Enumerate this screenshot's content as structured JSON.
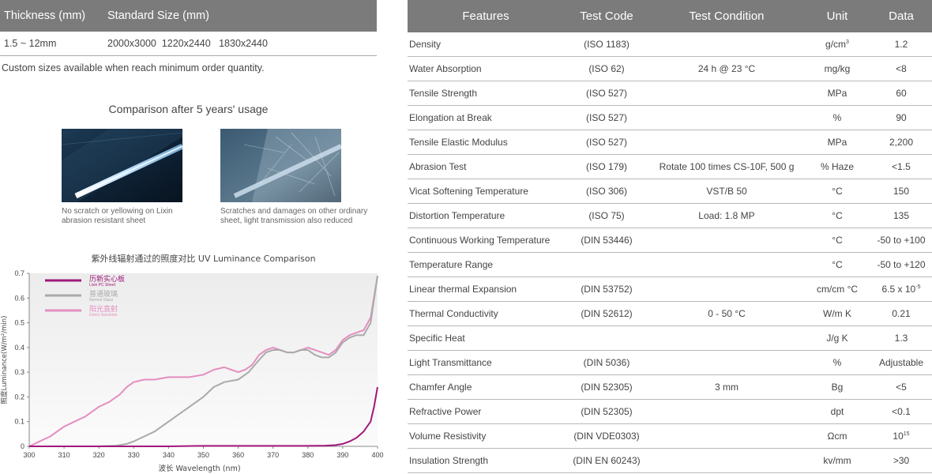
{
  "size_table": {
    "headers": [
      "Thickness (mm)",
      "Standard Size (mm)"
    ],
    "row": {
      "thickness": "1.5 ~ 12mm",
      "sizes": "2000x3000  1220x2440   1830x2440"
    }
  },
  "custom_note": "Custom sizes available when reach minimum order quantity.",
  "comparison": {
    "title": "Comparison after 5 years' usage",
    "left_caption": [
      "No scratch or yellowing on Lixin",
      "abrasion resistant sheet"
    ],
    "right_caption": [
      "Scratches and damages on other ordinary",
      "sheet, light transmission also reduced"
    ]
  },
  "chart_data": {
    "type": "line",
    "title": "紫外线辐射通过的照度对比 UV Luminance Comparison",
    "xlabel": "波长 Wavelength (nm)",
    "ylabel": "照度Luminance(W/m²/min)",
    "xlim": [
      300,
      400
    ],
    "ylim": [
      0,
      0.7
    ],
    "xticks": [
      300,
      310,
      320,
      330,
      340,
      350,
      360,
      370,
      380,
      390,
      400
    ],
    "yticks": [
      0,
      0.1,
      0.2,
      0.3,
      0.4,
      0.5,
      0.6,
      0.7
    ],
    "grid": false,
    "legend_position": "top-left",
    "series": [
      {
        "name": "历新实心板",
        "name_en": "Lixin PC Sheet",
        "color": "#a0197c",
        "x": [
          300,
          310,
          320,
          330,
          340,
          350,
          360,
          370,
          380,
          385,
          388,
          390,
          392,
          394,
          396,
          398,
          399,
          400
        ],
        "y": [
          0,
          0,
          0,
          0,
          0,
          0.002,
          0.002,
          0.002,
          0.002,
          0.003,
          0.005,
          0.01,
          0.02,
          0.035,
          0.06,
          0.1,
          0.16,
          0.24
        ]
      },
      {
        "name": "普通玻璃",
        "name_en": "Normal Glass",
        "color": "#aaaaaa",
        "x": [
          300,
          310,
          320,
          325,
          328,
          330,
          333,
          336,
          340,
          343,
          346,
          350,
          353,
          356,
          360,
          363,
          366,
          368,
          370,
          372,
          374,
          376,
          378,
          380,
          382,
          384,
          386,
          388,
          390,
          392,
          394,
          396,
          398,
          400
        ],
        "y": [
          0,
          0,
          0,
          0.003,
          0.01,
          0.02,
          0.04,
          0.06,
          0.1,
          0.13,
          0.16,
          0.2,
          0.24,
          0.26,
          0.27,
          0.3,
          0.35,
          0.38,
          0.39,
          0.39,
          0.38,
          0.38,
          0.39,
          0.39,
          0.37,
          0.36,
          0.36,
          0.38,
          0.42,
          0.44,
          0.45,
          0.45,
          0.5,
          0.69
        ]
      },
      {
        "name": "阳光直射",
        "name_en": "Direct Sunshine",
        "color": "#e48fc0",
        "x": [
          300,
          303,
          306,
          310,
          313,
          316,
          320,
          323,
          326,
          328,
          330,
          333,
          336,
          340,
          343,
          346,
          350,
          353,
          356,
          358,
          360,
          362,
          364,
          366,
          368,
          370,
          372,
          374,
          376,
          378,
          380,
          382,
          384,
          386,
          388,
          390,
          392,
          394,
          396,
          398,
          400
        ],
        "y": [
          0,
          0.02,
          0.04,
          0.08,
          0.1,
          0.12,
          0.16,
          0.18,
          0.21,
          0.24,
          0.26,
          0.27,
          0.27,
          0.28,
          0.28,
          0.28,
          0.29,
          0.31,
          0.32,
          0.31,
          0.3,
          0.31,
          0.33,
          0.37,
          0.39,
          0.4,
          0.39,
          0.38,
          0.38,
          0.39,
          0.4,
          0.39,
          0.38,
          0.37,
          0.39,
          0.43,
          0.45,
          0.46,
          0.47,
          0.52,
          0.69
        ]
      }
    ]
  },
  "props_table": {
    "headers": [
      "Features",
      "Test Code",
      "Test Condition",
      "Unit",
      "Data"
    ],
    "rows": [
      {
        "feature": "Density",
        "code": "(ISO 1183)",
        "condition": "",
        "unit": "g/cm",
        "unit_sup": "3",
        "data": "1.2",
        "data_sup": ""
      },
      {
        "feature": "Water Absorption",
        "code": "(ISO 62)",
        "condition": "24 h @ 23 °C",
        "unit": "mg/kg",
        "unit_sup": "",
        "data": "<8",
        "data_sup": ""
      },
      {
        "feature": "Tensile Strength",
        "code": "(ISO 527)",
        "condition": "",
        "unit": "MPa",
        "unit_sup": "",
        "data": "60",
        "data_sup": ""
      },
      {
        "feature": "Elongation at Break",
        "code": "(ISO 527)",
        "condition": "",
        "unit": "%",
        "unit_sup": "",
        "data": "90",
        "data_sup": ""
      },
      {
        "feature": "Tensile Elastic Modulus",
        "code": "(ISO 527)",
        "condition": "",
        "unit": "MPa",
        "unit_sup": "",
        "data": "2,200",
        "data_sup": ""
      },
      {
        "feature": "Abrasion Test",
        "code": "(ISO 179)",
        "condition": "Rotate 100 times CS-10F, 500 g",
        "unit": "% Haze",
        "unit_sup": "",
        "data": "<1.5",
        "data_sup": ""
      },
      {
        "feature": "Vicat Softening Temperature",
        "code": "(ISO 306)",
        "condition": "VST/B 50",
        "unit": "°C",
        "unit_sup": "",
        "data": "150",
        "data_sup": ""
      },
      {
        "feature": "Distortion Temperature",
        "code": "(ISO 75)",
        "condition": "Load: 1.8 MP",
        "unit": "°C",
        "unit_sup": "",
        "data": "135",
        "data_sup": ""
      },
      {
        "feature": "Continuous Working Temperature",
        "code": "(DIN 53446)",
        "condition": "",
        "unit": "°C",
        "unit_sup": "",
        "data": "-50  to  +100",
        "data_sup": ""
      },
      {
        "feature": "Temperature Range",
        "code": "",
        "condition": "",
        "unit": "°C",
        "unit_sup": "",
        "data": "-50  to  +120",
        "data_sup": ""
      },
      {
        "feature": "Linear thermal Expansion",
        "code": "(DIN 53752)",
        "condition": "",
        "unit": "cm/cm °C",
        "unit_sup": "",
        "data": "6.5 x 10",
        "data_sup": "-5"
      },
      {
        "feature": "Thermal Conductivity",
        "code": "(DIN 52612)",
        "condition": "0 - 50 °C",
        "unit": "W/m K",
        "unit_sup": "",
        "data": "0.21",
        "data_sup": ""
      },
      {
        "feature": "Specific Heat",
        "code": "",
        "condition": "",
        "unit": "J/g K",
        "unit_sup": "",
        "data": "1.3",
        "data_sup": ""
      },
      {
        "feature": "Light Transmittance",
        "code": "(DIN 5036)",
        "condition": "",
        "unit": "%",
        "unit_sup": "",
        "data": "Adjustable",
        "data_sup": ""
      },
      {
        "feature": "Chamfer Angle",
        "code": "(DIN 52305)",
        "condition": "3 mm",
        "unit": "Bg",
        "unit_sup": "",
        "data": "<5",
        "data_sup": ""
      },
      {
        "feature": "Refractive Power",
        "code": "(DIN 52305)",
        "condition": "",
        "unit": "dpt",
        "unit_sup": "",
        "data": "<0.1",
        "data_sup": ""
      },
      {
        "feature": "Volume Resistivity",
        "code": "(DIN VDE0303)",
        "condition": "",
        "unit": "Ωcm",
        "unit_sup": "",
        "data": "10",
        "data_sup": "15"
      },
      {
        "feature": "Insulation Strength",
        "code": "(DIN EN 60243)",
        "condition": "",
        "unit": "kv/mm",
        "unit_sup": "",
        "data": ">30",
        "data_sup": ""
      }
    ]
  }
}
